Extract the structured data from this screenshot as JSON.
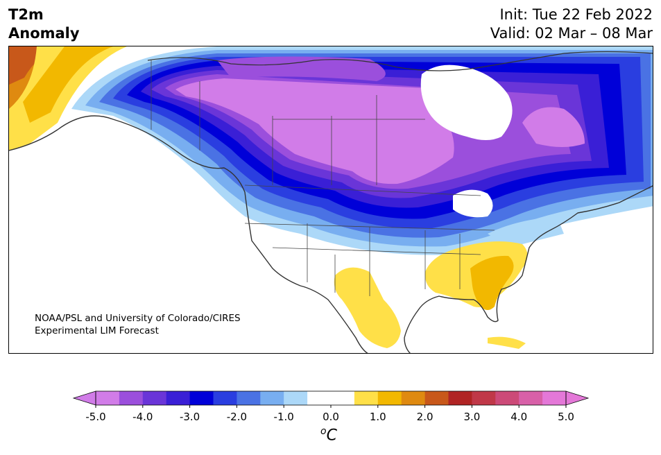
{
  "title": {
    "line1": "T2m",
    "line2": "Anomaly"
  },
  "init": "Init: Tue 22 Feb 2022",
  "valid": "Valid: 02 Mar – 08 Mar",
  "credit": {
    "line1": "NOAA/PSL and University of Colorado/CIRES",
    "line2": "Experimental LIM Forecast"
  },
  "colorbar": {
    "ticks": [
      "-5.0",
      "-4.0",
      "-3.0",
      "-2.0",
      "-1.0",
      "0.0",
      "1.0",
      "2.0",
      "3.0",
      "4.0",
      "5.0"
    ],
    "unit_base": "C",
    "unit_sup": "o",
    "colors": [
      "#d17ce8",
      "#9b4fdc",
      "#6a35d8",
      "#3a1fd6",
      "#0000d8",
      "#2a3ee0",
      "#4a72e4",
      "#78aef0",
      "#acd8f8",
      "#ffffff",
      "#ffffff",
      "#ffe048",
      "#f2b800",
      "#df8a10",
      "#c8581a",
      "#b02424",
      "#c03848",
      "#cc4a78",
      "#d860a8",
      "#e478d8"
    ]
  }
}
